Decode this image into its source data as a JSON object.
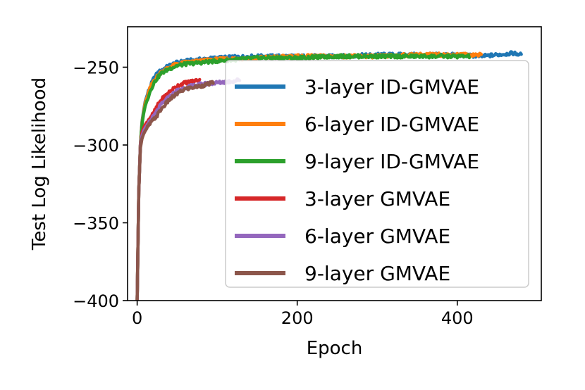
{
  "chart_data": {
    "type": "line",
    "title": "",
    "xlabel": "Epoch",
    "ylabel": "Test Log Likelihood",
    "xlim": [
      -12,
      505
    ],
    "ylim": [
      -400,
      -224
    ],
    "xticks": [
      0,
      200,
      400
    ],
    "xtick_labels": [
      "0",
      "200",
      "400"
    ],
    "yticks": [
      -250,
      -300,
      -350,
      -400
    ],
    "ytick_labels": [
      "−250",
      "−300",
      "−350",
      "−400"
    ],
    "grid": false,
    "legend_position": "lower-right",
    "series": [
      {
        "name": "3-layer ID-GMVAE",
        "color": "#1f77b4",
        "x": [
          0,
          2,
          4,
          6,
          8,
          10,
          15,
          20,
          25,
          30,
          40,
          50,
          60,
          80,
          100,
          150,
          200,
          250,
          300,
          350,
          400,
          430,
          450,
          470,
          480
        ],
        "y": [
          -400,
          -330,
          -300,
          -285,
          -278,
          -272,
          -264,
          -258,
          -254,
          -252,
          -249,
          -247,
          -246,
          -245,
          -244,
          -243,
          -243,
          -243,
          -242,
          -242,
          -242,
          -243,
          -242,
          -241,
          -242
        ]
      },
      {
        "name": "6-layer ID-GMVAE",
        "color": "#ff7f0e",
        "x": [
          0,
          2,
          4,
          6,
          8,
          10,
          15,
          20,
          25,
          30,
          40,
          50,
          60,
          80,
          100,
          150,
          200,
          250,
          300,
          350,
          400,
          420,
          430
        ],
        "y": [
          -400,
          -330,
          -300,
          -286,
          -279,
          -273,
          -265,
          -259,
          -256,
          -253,
          -250,
          -248,
          -247,
          -246,
          -245,
          -244,
          -243,
          -243,
          -243,
          -242,
          -242,
          -242,
          -242
        ]
      },
      {
        "name": "9-layer ID-GMVAE",
        "color": "#2ca02c",
        "x": [
          0,
          2,
          4,
          6,
          8,
          10,
          15,
          20,
          25,
          30,
          40,
          50,
          60,
          80,
          100,
          150,
          200,
          250,
          300,
          350,
          400,
          415
        ],
        "y": [
          -400,
          -330,
          -300,
          -287,
          -280,
          -275,
          -267,
          -261,
          -257,
          -254,
          -251,
          -249,
          -248,
          -247,
          -246,
          -244,
          -244,
          -243,
          -243,
          -243,
          -243,
          -243
        ]
      },
      {
        "name": "3-layer GMVAE",
        "color": "#d62728",
        "x": [
          0,
          2,
          4,
          6,
          8,
          10,
          15,
          20,
          25,
          30,
          40,
          50,
          60,
          70,
          78
        ],
        "y": [
          -400,
          -330,
          -300,
          -292,
          -289,
          -287,
          -283,
          -280,
          -275,
          -271,
          -266,
          -262,
          -260,
          -259,
          -258
        ]
      },
      {
        "name": "6-layer GMVAE",
        "color": "#9467bd",
        "x": [
          0,
          2,
          4,
          6,
          8,
          10,
          15,
          20,
          25,
          30,
          40,
          50,
          60,
          80,
          100,
          120,
          128
        ],
        "y": [
          -400,
          -330,
          -301,
          -294,
          -291,
          -289,
          -285,
          -282,
          -278,
          -274,
          -269,
          -265,
          -263,
          -261,
          -260,
          -259,
          -258
        ]
      },
      {
        "name": "9-layer GMVAE",
        "color": "#8c564b",
        "x": [
          0,
          2,
          4,
          6,
          8,
          10,
          15,
          20,
          25,
          30,
          40,
          50,
          60,
          80,
          95
        ],
        "y": [
          -400,
          -330,
          -302,
          -296,
          -293,
          -291,
          -287,
          -284,
          -281,
          -277,
          -271,
          -267,
          -264,
          -262,
          -260
        ]
      }
    ]
  }
}
